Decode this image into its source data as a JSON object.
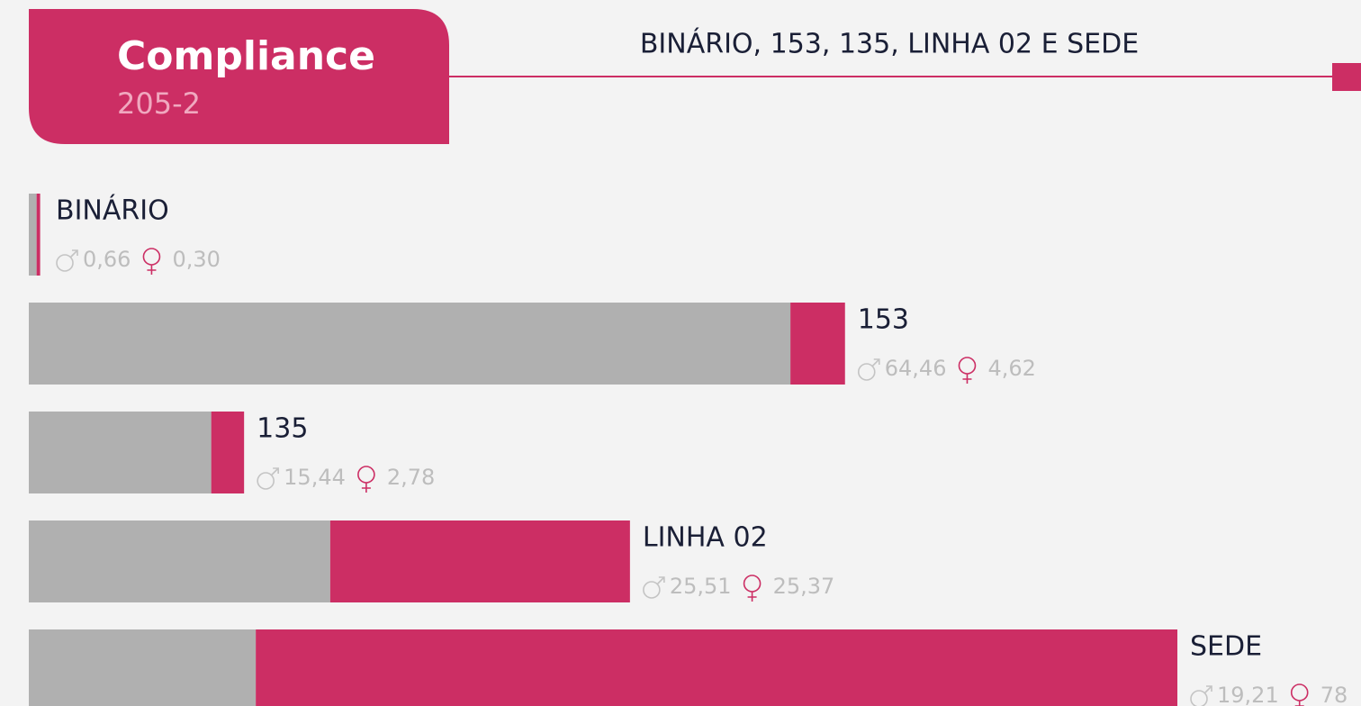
{
  "chart_data": {
    "type": "bar",
    "orientation": "horizontal",
    "stacked": true,
    "title": "Compliance",
    "code": "205-2",
    "subtitle": "BINÁRIO, 153, 135, LINHA 02 E SEDE",
    "categories": [
      "BINÁRIO",
      "153",
      "135",
      "LINHA 02",
      "SEDE"
    ],
    "series": [
      {
        "color": "#b0b0b0",
        "values": [
          0.66,
          64.46,
          15.44,
          25.51,
          19.21
        ],
        "value_labels": [
          "0,66",
          "64,46",
          "15,44",
          "25,51",
          "19,21"
        ]
      },
      {
        "color": "#cc2e64",
        "values": [
          0.3,
          4.62,
          2.78,
          25.37,
          78
        ],
        "value_labels": [
          "0,30",
          "4,62",
          "2,78",
          "25,37",
          "78"
        ]
      }
    ]
  }
}
